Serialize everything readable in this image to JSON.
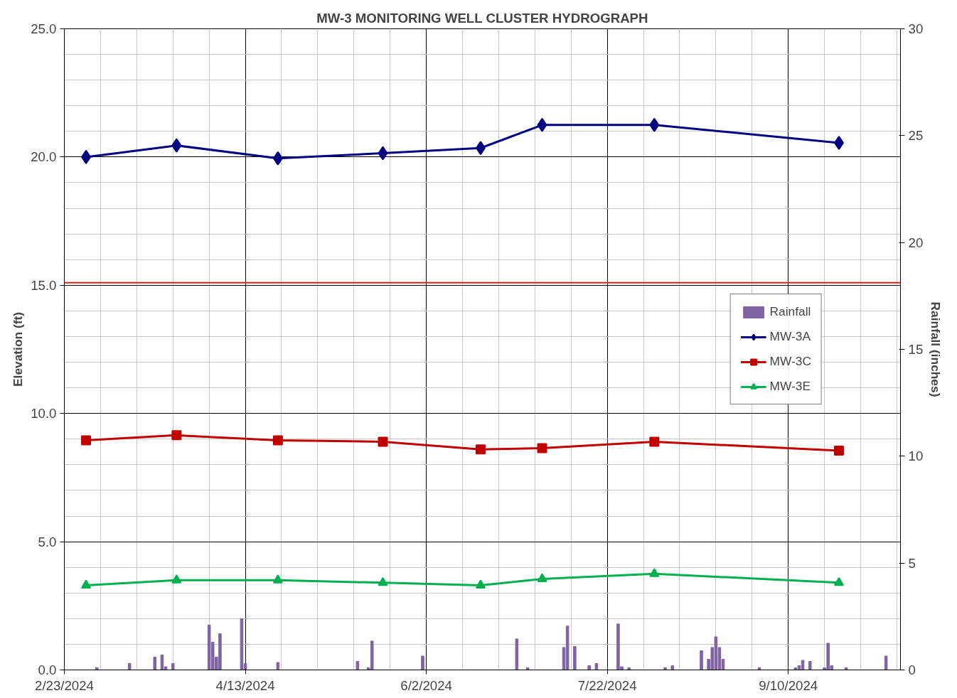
{
  "chart_data": {
    "type": "line",
    "title": "MW-3 MONITORING WELL CLUSTER HYDROGRAPH",
    "ylabel": "Elevation (ft)",
    "y2label": "Rainfall (inches)",
    "xlim": [
      "2024-02-23",
      "2024-10-11"
    ],
    "xticks": [
      {
        "value": "2024-02-23",
        "label": "2/23/2024"
      },
      {
        "value": "2024-04-13",
        "label": "4/13/2024"
      },
      {
        "value": "2024-06-02",
        "label": "6/2/2024"
      },
      {
        "value": "2024-07-22",
        "label": "7/22/2024"
      },
      {
        "value": "2024-09-10",
        "label": "9/10/2024"
      }
    ],
    "ylim": [
      0,
      25
    ],
    "yticks": [
      {
        "value": 0,
        "label": "0.0"
      },
      {
        "value": 5,
        "label": "5.0"
      },
      {
        "value": 10,
        "label": "10.0"
      },
      {
        "value": 15,
        "label": "15.0"
      },
      {
        "value": 20,
        "label": "20.0"
      },
      {
        "value": 25,
        "label": "25.0"
      }
    ],
    "y2lim": [
      0,
      30
    ],
    "y2ticks": [
      0,
      5,
      10,
      15,
      20,
      25,
      30
    ],
    "grid": true,
    "legend": "right",
    "ref_lines": [
      {
        "axis": "y",
        "value": 15.1,
        "color": "#e02020"
      }
    ],
    "series": [
      {
        "name": "Rainfall",
        "type": "bar",
        "axis": "y2",
        "color": "#8064a2",
        "x": [
          "2024-03-03",
          "2024-03-12",
          "2024-03-19",
          "2024-03-21",
          "2024-03-22",
          "2024-03-24",
          "2024-04-03",
          "2024-04-04",
          "2024-04-05",
          "2024-04-06",
          "2024-04-12",
          "2024-04-13",
          "2024-04-22",
          "2024-05-14",
          "2024-05-17",
          "2024-05-18",
          "2024-06-01",
          "2024-06-27",
          "2024-06-30",
          "2024-07-10",
          "2024-07-11",
          "2024-07-13",
          "2024-07-17",
          "2024-07-19",
          "2024-07-25",
          "2024-07-26",
          "2024-07-28",
          "2024-08-07",
          "2024-08-09",
          "2024-08-17",
          "2024-08-19",
          "2024-08-20",
          "2024-08-21",
          "2024-08-22",
          "2024-08-23",
          "2024-09-02",
          "2024-09-12",
          "2024-09-13",
          "2024-09-14",
          "2024-09-16",
          "2024-09-20",
          "2024-09-21",
          "2024-09-22",
          "2024-09-26",
          "2024-10-07"
        ],
        "values": [
          0.1,
          0.3,
          0.6,
          0.7,
          0.15,
          0.3,
          2.1,
          1.3,
          0.6,
          1.7,
          2.4,
          0.3,
          0.35,
          0.4,
          0.1,
          1.35,
          0.65,
          1.45,
          0.1,
          1.05,
          2.05,
          1.1,
          0.2,
          0.3,
          2.15,
          0.15,
          0.1,
          0.1,
          0.2,
          0.9,
          0.5,
          1.05,
          1.55,
          1.05,
          0.5,
          0.1,
          0.1,
          0.2,
          0.45,
          0.4,
          0.1,
          1.25,
          0.2,
          0.1,
          0.65
        ]
      },
      {
        "name": "MW-3A",
        "marker": "diamond",
        "color": "#000080",
        "x": [
          "2024-02-29",
          "2024-03-25",
          "2024-04-22",
          "2024-05-21",
          "2024-06-17",
          "2024-07-04",
          "2024-08-04",
          "2024-09-24"
        ],
        "values": [
          20.0,
          20.45,
          19.95,
          20.15,
          20.35,
          21.25,
          21.25,
          20.55
        ]
      },
      {
        "name": "MW-3C",
        "marker": "square",
        "color": "#c00000",
        "x": [
          "2024-02-29",
          "2024-03-25",
          "2024-04-22",
          "2024-05-21",
          "2024-06-17",
          "2024-07-04",
          "2024-08-04",
          "2024-09-24"
        ],
        "values": [
          8.95,
          9.15,
          8.95,
          8.9,
          8.6,
          8.65,
          8.9,
          8.55
        ]
      },
      {
        "name": "MW-3E",
        "marker": "triangle",
        "color": "#00b050",
        "x": [
          "2024-02-29",
          "2024-03-25",
          "2024-04-22",
          "2024-05-21",
          "2024-06-17",
          "2024-07-04",
          "2024-08-04",
          "2024-09-24"
        ],
        "values": [
          3.3,
          3.5,
          3.5,
          3.4,
          3.3,
          3.55,
          3.75,
          3.4
        ]
      }
    ]
  }
}
